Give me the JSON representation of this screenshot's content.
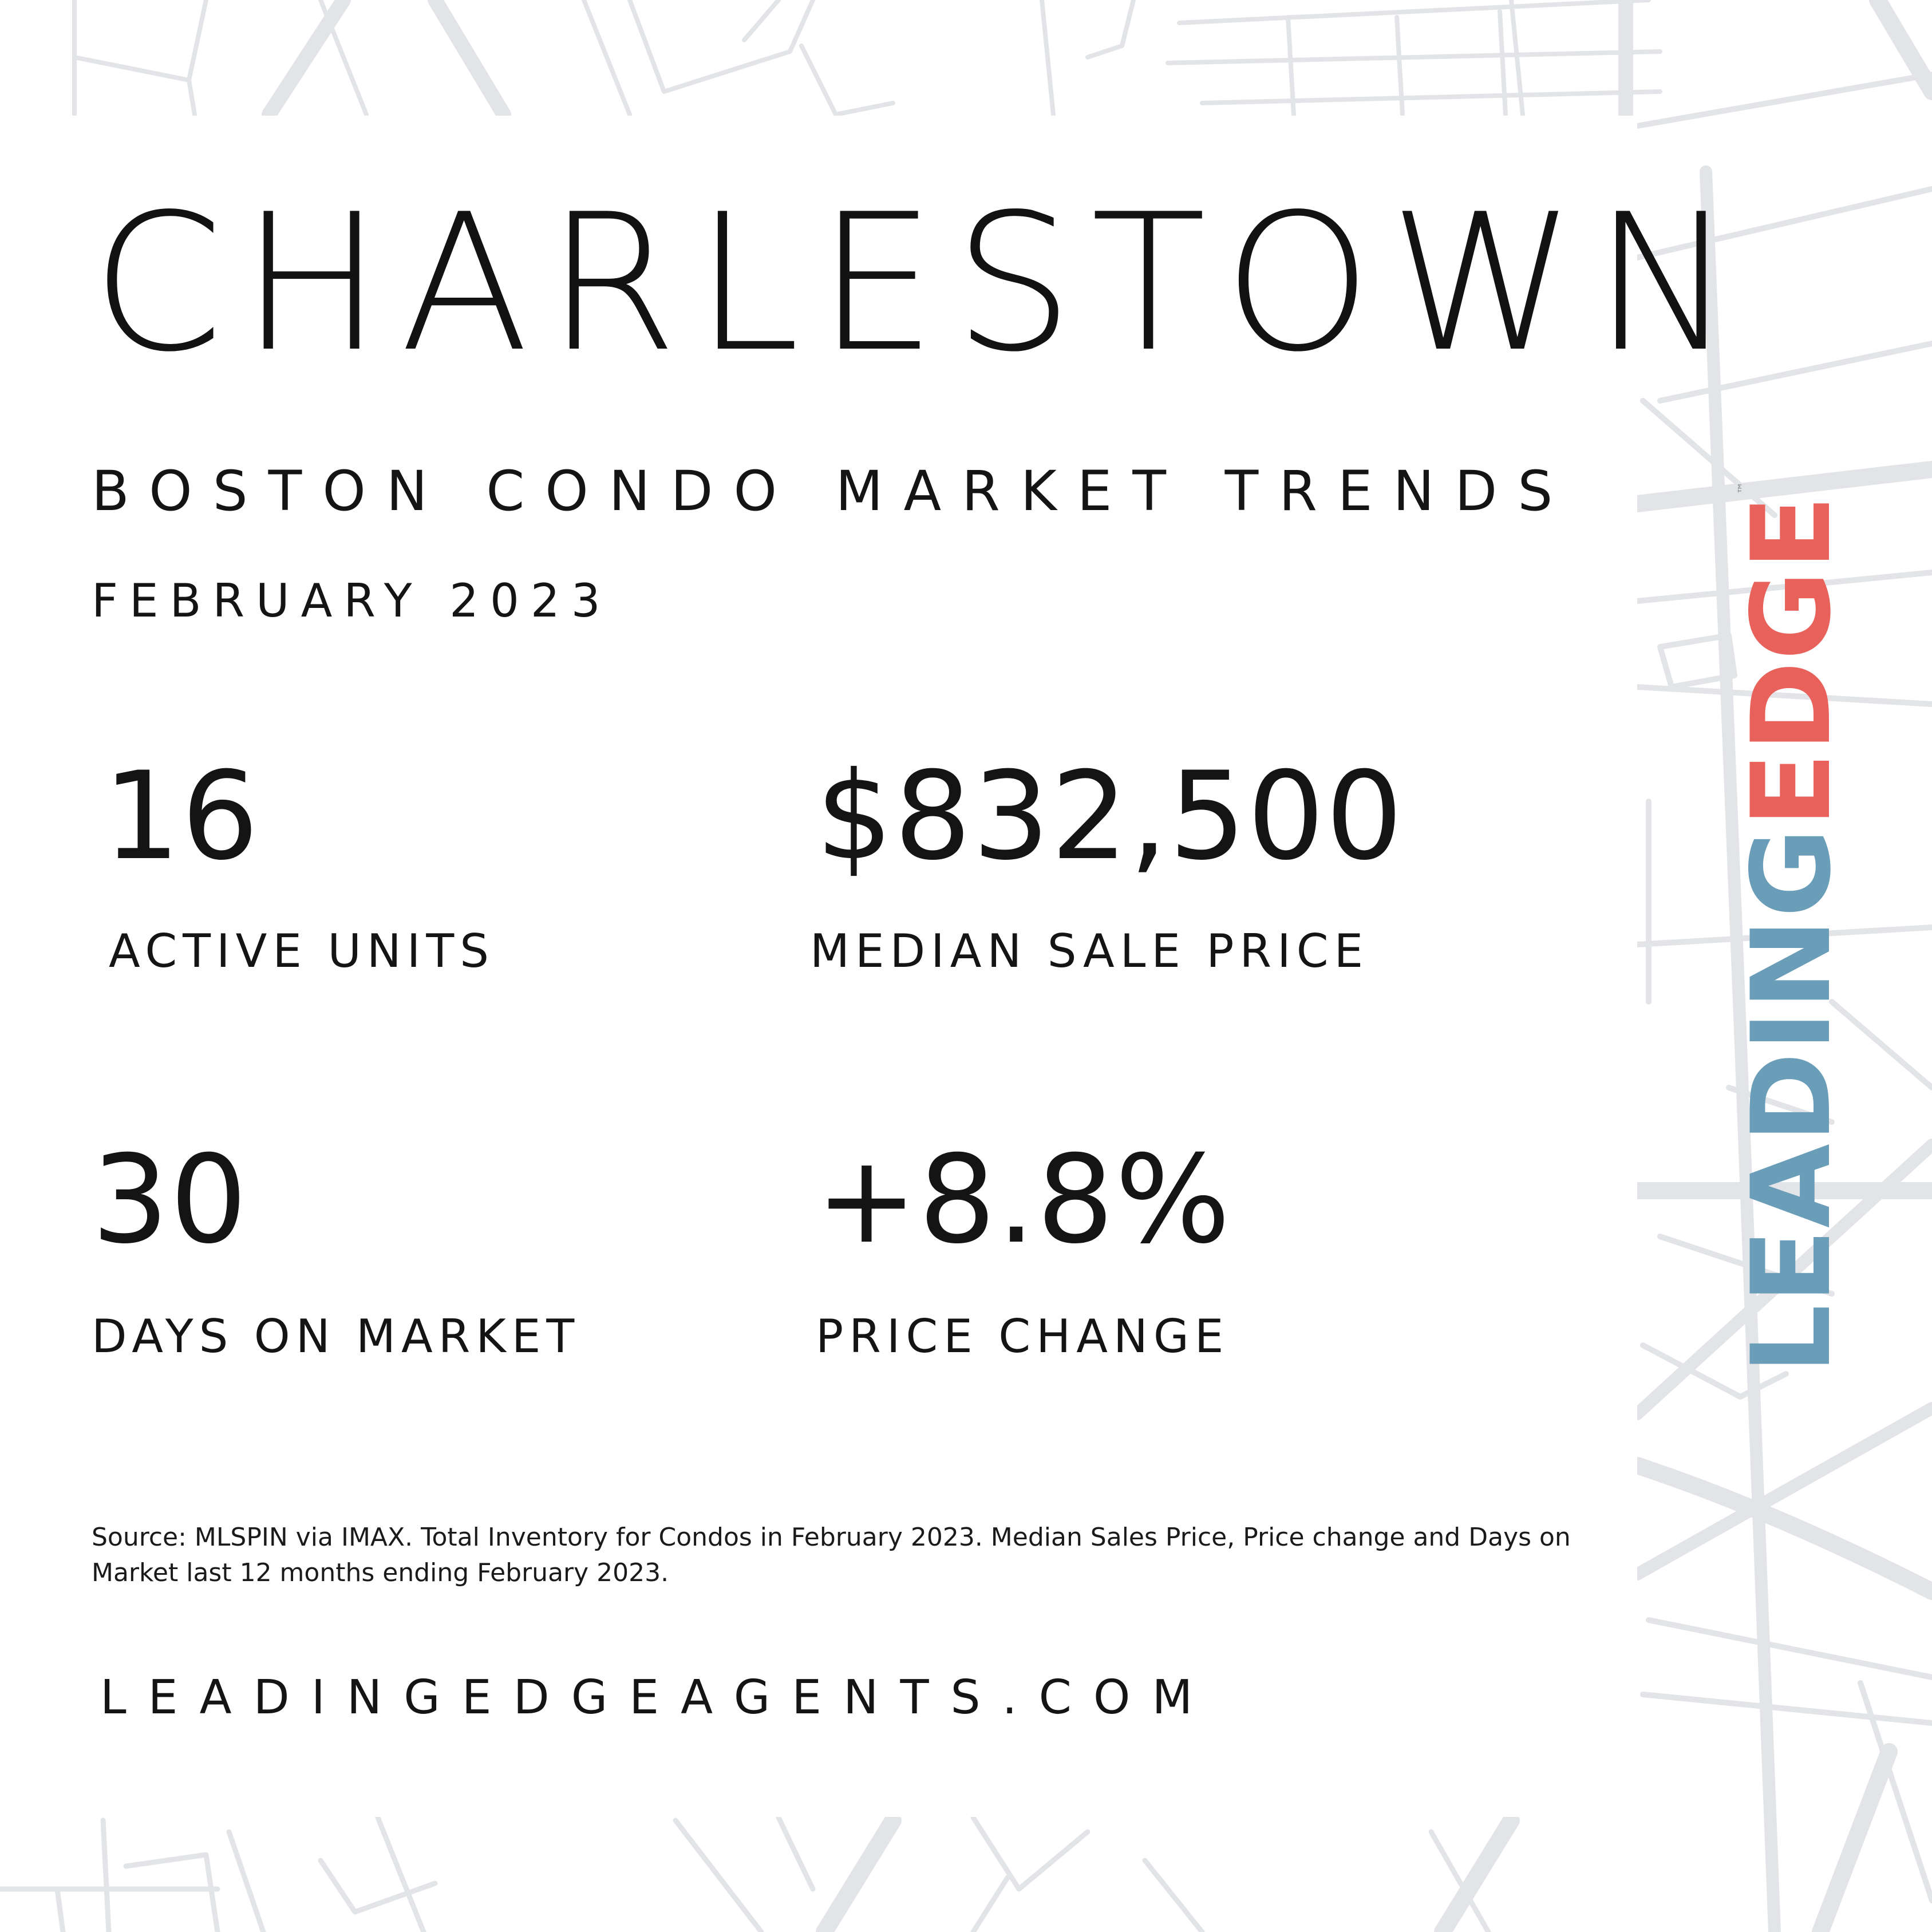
{
  "colors": {
    "background": "#ffffff",
    "map_lines": "#e2e4e7",
    "text": "#141414",
    "logo_blue": "#6a9db8",
    "logo_red": "#e8615a"
  },
  "header": {
    "title": "CHARLESTOWN",
    "subtitle": "BOSTON CONDO MARKET TRENDS",
    "date": "FEBRUARY 2023"
  },
  "stats": [
    {
      "value": "16",
      "label": "ACTIVE UNITS"
    },
    {
      "value": "$832,500",
      "label": "MEDIAN SALE PRICE"
    },
    {
      "value": "30",
      "label": "DAYS ON MARKET"
    },
    {
      "value": "+8.8%",
      "label": "PRICE CHANGE"
    }
  ],
  "source_note": "Source: MLSPIN via IMAX. Total Inventory for Condos in February 2023. Median Sales Price, Price change and Days on Market last 12 months ending February 2023.",
  "website": "LEADINGEDGEAGENTS.COM",
  "logo": {
    "part1": "LEADING",
    "part2": "EDGE",
    "trademark": "™"
  }
}
